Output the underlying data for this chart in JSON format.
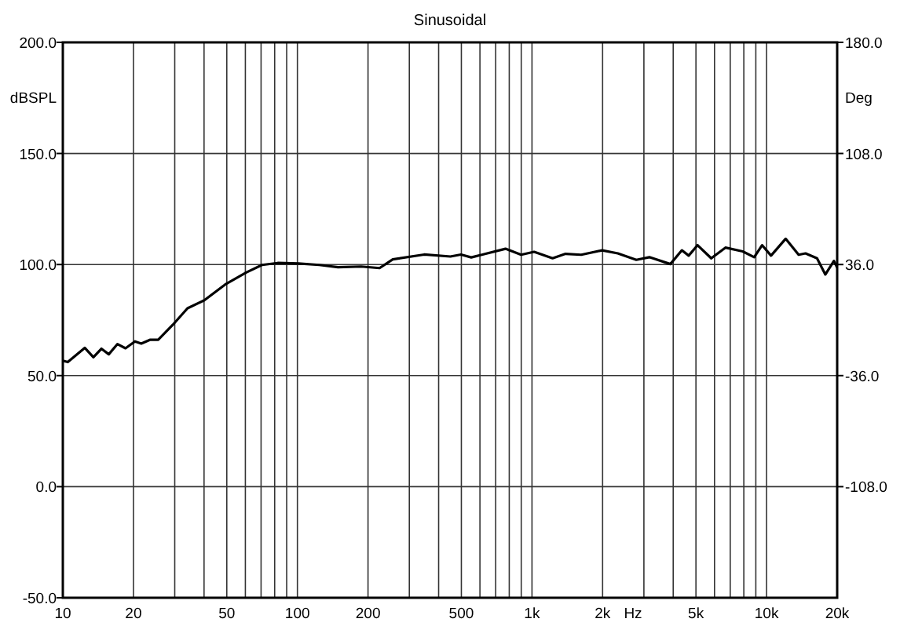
{
  "chart_data": {
    "type": "line",
    "title": "Sinusoidal",
    "xlabel": "Hz",
    "ylabel": "dBSPL",
    "y2label": "Deg",
    "log": "x",
    "grid": true,
    "marker": "none",
    "line_style": "solid",
    "xlim": [
      10,
      20000
    ],
    "xticks": [
      10,
      20,
      {
        "value": 30,
        "label": null
      },
      {
        "value": 40,
        "label": null
      },
      50,
      {
        "value": 60,
        "label": null
      },
      {
        "value": 70,
        "label": null
      },
      {
        "value": 80,
        "label": null
      },
      {
        "value": 90,
        "label": null
      },
      100,
      200,
      {
        "value": 300,
        "label": null
      },
      {
        "value": 400,
        "label": null
      },
      500,
      {
        "value": 600,
        "label": null
      },
      {
        "value": 700,
        "label": null
      },
      {
        "value": 800,
        "label": null
      },
      {
        "value": 900,
        "label": null
      },
      {
        "value": 1000,
        "label": "1k"
      },
      {
        "value": 2000,
        "label": "2k"
      },
      {
        "value": 3000,
        "label": null
      },
      {
        "value": 4000,
        "label": null
      },
      {
        "value": 5000,
        "label": "5k"
      },
      {
        "value": 6000,
        "label": null
      },
      {
        "value": 7000,
        "label": null
      },
      {
        "value": 8000,
        "label": null
      },
      {
        "value": 9000,
        "label": null
      },
      {
        "value": 10000,
        "label": "10k"
      },
      {
        "value": 20000,
        "label": "20k"
      }
    ],
    "ylim": [
      -50,
      200
    ],
    "yticks": [
      {
        "value": -50,
        "label": "-50.0"
      },
      {
        "value": 0,
        "label": "0.0"
      },
      {
        "value": 50,
        "label": "50.0"
      },
      {
        "value": 100,
        "label": "100.0"
      },
      {
        "value": 150,
        "label": "150.0"
      },
      {
        "value": 200,
        "label": "200.0"
      }
    ],
    "y2lim": [
      -180,
      180
    ],
    "y2ticks": [
      {
        "value": -108,
        "label": "-108.0"
      },
      {
        "value": -36,
        "label": "-36.0"
      },
      {
        "value": 36,
        "label": "36.0"
      },
      {
        "value": 108,
        "label": "108.0"
      },
      {
        "value": 180,
        "label": "180.0"
      }
    ],
    "series": [
      {
        "color": "#000000",
        "x": [
          10,
          10.5,
          12.4,
          13.5,
          14.6,
          15.7,
          17.1,
          18.5,
          20.3,
          21.6,
          23.5,
          25.5,
          29.4,
          34,
          40.1,
          49.2,
          60.5,
          70.6,
          82.4,
          101,
          124,
          149,
          187,
          224,
          255,
          347,
          449,
          498,
          551,
          611,
          771,
          899,
          1021,
          1224,
          1390,
          1622,
          1991,
          2323,
          2784,
          3165,
          3890,
          4355,
          4656,
          5082,
          5810,
          6678,
          7914,
          8855,
          9570,
          10450,
          12060,
          13700,
          14660,
          16410,
          17810,
          19370,
          20000
        ],
        "values": [
          56.7,
          56.1,
          62.5,
          58.3,
          62.1,
          59.6,
          64.2,
          62.3,
          65.4,
          64.4,
          66.1,
          66.1,
          72.8,
          80.3,
          83.9,
          91,
          96.4,
          99.8,
          100.7,
          100.5,
          99.8,
          98.8,
          99.1,
          98.4,
          102.3,
          104.5,
          103.6,
          104.5,
          103.2,
          104.4,
          107.1,
          104.4,
          105.7,
          102.8,
          104.8,
          104.4,
          106.4,
          105,
          102.1,
          103.3,
          100.2,
          106.4,
          104,
          108.7,
          102.8,
          107.6,
          105.9,
          103.3,
          108.7,
          104,
          111.6,
          104.4,
          105,
          102.8,
          95.5,
          101.6,
          98.6
        ]
      }
    ]
  }
}
